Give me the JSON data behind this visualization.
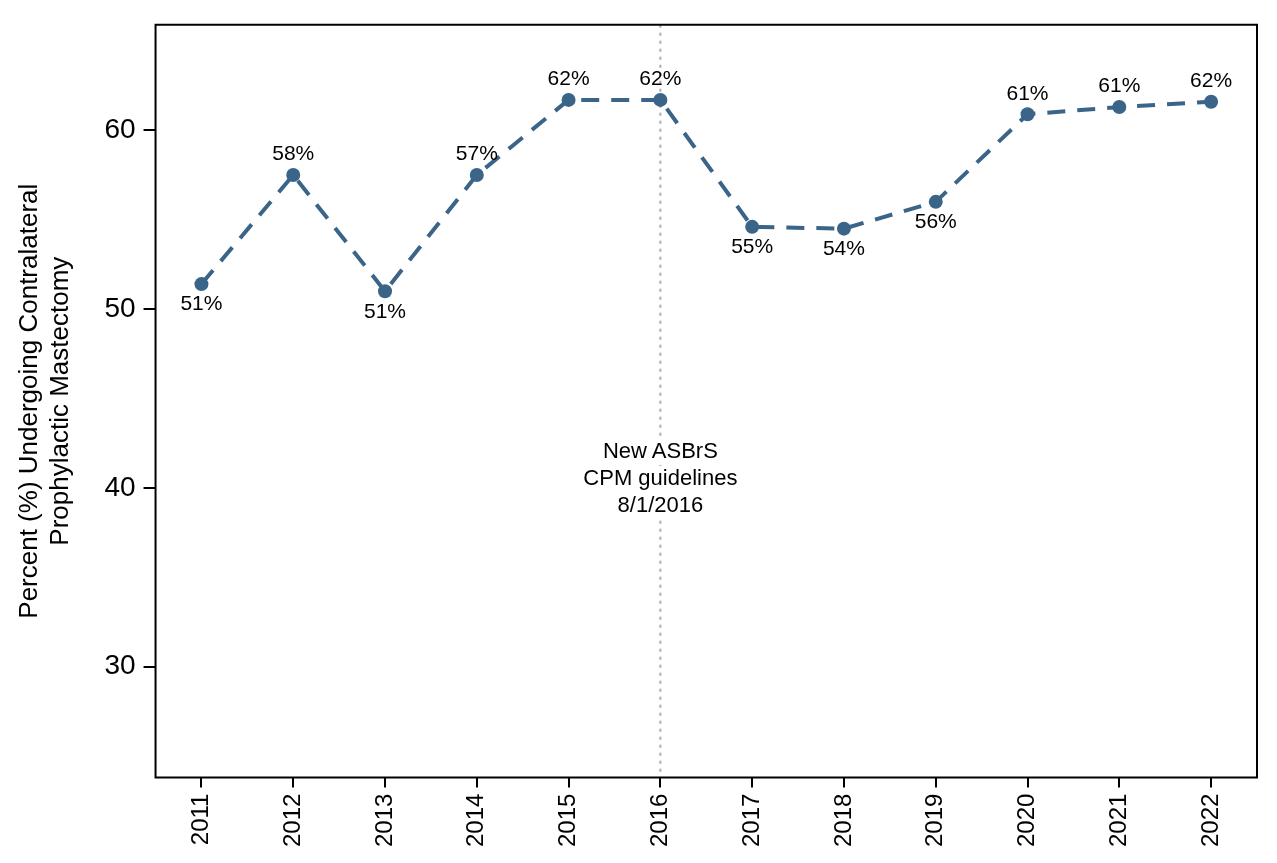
{
  "chart_data": {
    "type": "line",
    "ylabel": "Percent (%) Undergoing Contralateral\nProphylactic Mastectomy",
    "categories": [
      "2011",
      "2012",
      "2013",
      "2014",
      "2015",
      "2016",
      "2017",
      "2018",
      "2019",
      "2020",
      "2021",
      "2022"
    ],
    "series": [
      {
        "color": "#3b6489",
        "values": [
          51.4,
          57.5,
          51.0,
          57.5,
          61.7,
          61.7,
          54.6,
          54.5,
          56.0,
          60.9,
          61.3,
          61.6
        ],
        "value_labels": [
          "51%",
          "58%",
          "51%",
          "57%",
          "62%",
          "62%",
          "55%",
          "54%",
          "56%",
          "61%",
          "61%",
          "62%"
        ]
      }
    ],
    "ylim": [
      23.8,
      65.9
    ],
    "yticks": [
      30,
      40,
      50,
      60
    ],
    "grid": false,
    "legend": false,
    "marker": "circle",
    "line_style": "dashed",
    "ref_lines": [
      {
        "axis": "x",
        "value": "2016",
        "label": "New ASBrS\nCPM guidelines\n8/1/2016",
        "color": "#aaaaaa",
        "line_style": "dotted"
      }
    ]
  }
}
